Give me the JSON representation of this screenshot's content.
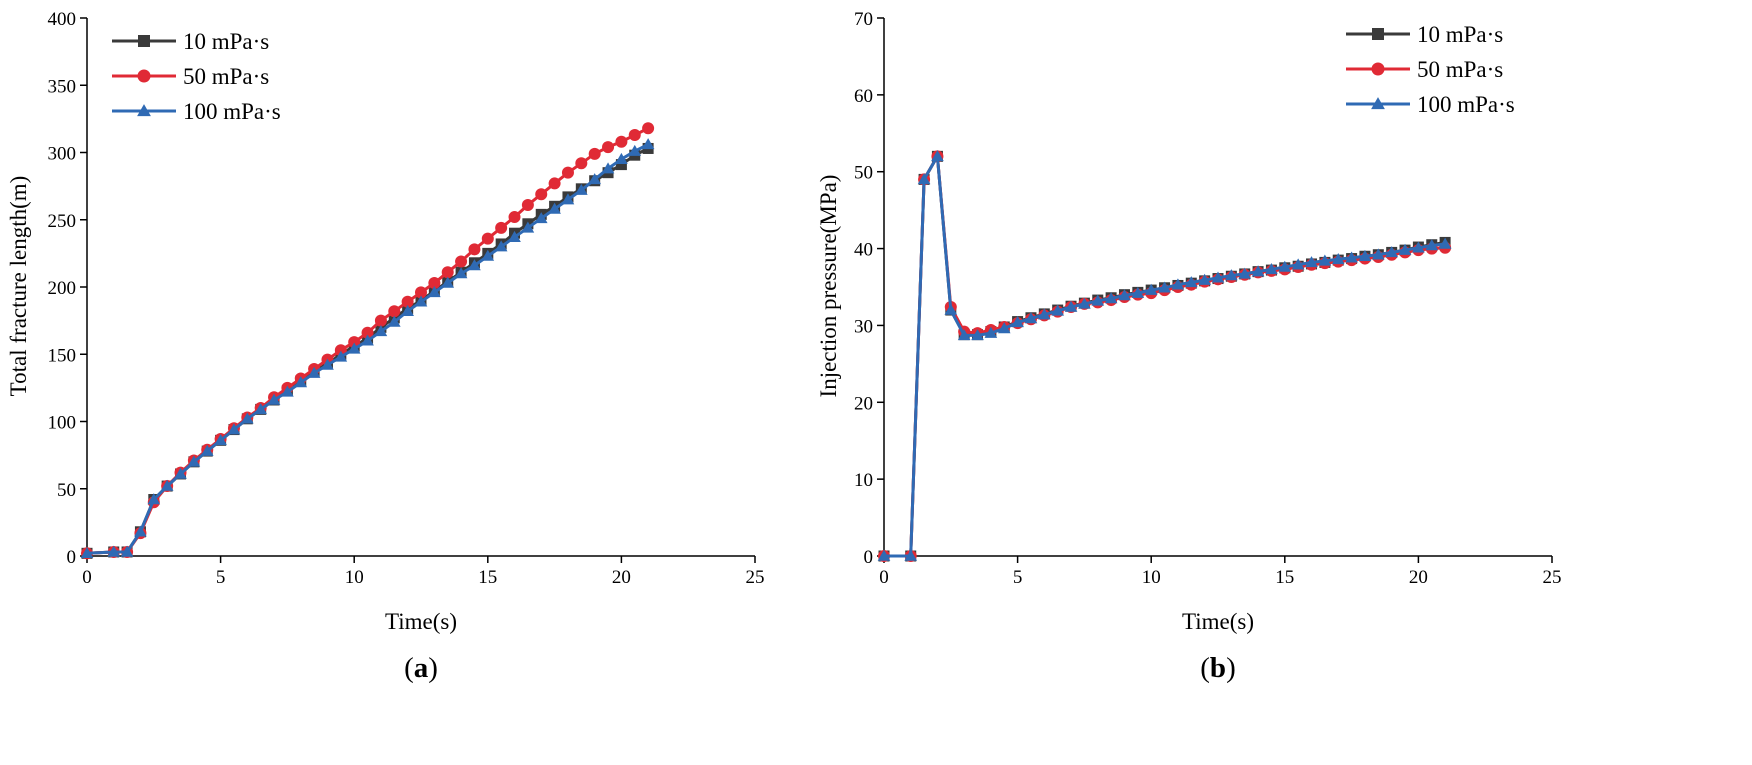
{
  "colors": {
    "s10": "#3a3a3a",
    "s50": "#e02a35",
    "s100": "#2f6ab4"
  },
  "chart_data": [
    {
      "type": "line",
      "panel_label": "(a)",
      "panel_letter": "a",
      "xlabel": "Time(s)",
      "ylabel": "Total fracture length(m)",
      "xlim": [
        0,
        25
      ],
      "ylim": [
        0,
        400
      ],
      "xticks": [
        0,
        5,
        10,
        15,
        20,
        25
      ],
      "yticks": [
        0,
        50,
        100,
        150,
        200,
        250,
        300,
        350,
        400
      ],
      "legend_position": "top-left",
      "series": [
        {
          "name": "10 mPa·s",
          "marker": "square",
          "color_key": "s10",
          "x": [
            0,
            1,
            1.5,
            2,
            2.5,
            3,
            3.5,
            4,
            4.5,
            5,
            5.5,
            6,
            6.5,
            7,
            7.5,
            8,
            8.5,
            9,
            9.5,
            10,
            10.5,
            11,
            11.5,
            12,
            12.5,
            13,
            13.5,
            14,
            14.5,
            15,
            15.5,
            16,
            16.5,
            17,
            17.5,
            18,
            18.5,
            19,
            19.5,
            20,
            20.5,
            21
          ],
          "y": [
            2,
            3,
            3,
            18,
            42,
            52,
            61,
            70,
            78,
            86,
            94,
            102,
            109,
            116,
            123,
            130,
            137,
            143,
            150,
            156,
            162,
            170,
            177,
            184,
            190,
            197,
            204,
            211,
            218,
            225,
            232,
            240,
            247,
            254,
            260,
            267,
            273,
            279,
            285,
            291,
            298,
            303
          ]
        },
        {
          "name": "50 mPa·s",
          "marker": "circle",
          "color_key": "s50",
          "x": [
            0,
            1,
            1.5,
            2,
            2.5,
            3,
            3.5,
            4,
            4.5,
            5,
            5.5,
            6,
            6.5,
            7,
            7.5,
            8,
            8.5,
            9,
            9.5,
            10,
            10.5,
            11,
            11.5,
            12,
            12.5,
            13,
            13.5,
            14,
            14.5,
            15,
            15.5,
            16,
            16.5,
            17,
            17.5,
            18,
            18.5,
            19,
            19.5,
            20,
            20.5,
            21
          ],
          "y": [
            2,
            3,
            3,
            17,
            40,
            52,
            62,
            71,
            79,
            87,
            95,
            103,
            110,
            118,
            125,
            132,
            139,
            146,
            153,
            159,
            166,
            175,
            182,
            189,
            196,
            203,
            211,
            219,
            228,
            236,
            244,
            252,
            261,
            269,
            277,
            285,
            292,
            299,
            304,
            308,
            313,
            318
          ]
        },
        {
          "name": "100 mPa·s",
          "marker": "triangle",
          "color_key": "s100",
          "x": [
            0,
            1,
            1.5,
            2,
            2.5,
            3,
            3.5,
            4,
            4.5,
            5,
            5.5,
            6,
            6.5,
            7,
            7.5,
            8,
            8.5,
            9,
            9.5,
            10,
            10.5,
            11,
            11.5,
            12,
            12.5,
            13,
            13.5,
            14,
            14.5,
            15,
            15.5,
            16,
            16.5,
            17,
            17.5,
            18,
            18.5,
            19,
            19.5,
            20,
            20.5,
            21
          ],
          "y": [
            2,
            3,
            3,
            18,
            42,
            52,
            61,
            70,
            78,
            86,
            94,
            102,
            109,
            116,
            122,
            129,
            136,
            142,
            148,
            154,
            160,
            167,
            174,
            182,
            189,
            196,
            203,
            210,
            216,
            223,
            230,
            237,
            244,
            251,
            258,
            265,
            272,
            280,
            288,
            295,
            301,
            306
          ]
        }
      ]
    },
    {
      "type": "line",
      "panel_label": "(b)",
      "panel_letter": "b",
      "xlabel": "Time(s)",
      "ylabel": "Injection pressure(MPa)",
      "xlim": [
        0,
        25
      ],
      "ylim": [
        0,
        70
      ],
      "xticks": [
        0,
        5,
        10,
        15,
        20,
        25
      ],
      "yticks": [
        0,
        10,
        20,
        30,
        40,
        50,
        60,
        70
      ],
      "legend_position": "top-right",
      "series": [
        {
          "name": "10 mPa·s",
          "marker": "square",
          "color_key": "s10",
          "x": [
            0,
            1,
            1.5,
            2,
            2.5,
            3,
            3.5,
            4,
            4.5,
            5,
            5.5,
            6,
            6.5,
            7,
            7.5,
            8,
            8.5,
            9,
            9.5,
            10,
            10.5,
            11,
            11.5,
            12,
            12.5,
            13,
            13.5,
            14,
            14.5,
            15,
            15.5,
            16,
            16.5,
            17,
            17.5,
            18,
            18.5,
            19,
            19.5,
            20,
            20.5,
            21
          ],
          "y": [
            0,
            0,
            49,
            52,
            32,
            28.8,
            28.8,
            29.2,
            29.8,
            30.5,
            31,
            31.5,
            32,
            32.5,
            32.9,
            33.3,
            33.6,
            34,
            34.3,
            34.6,
            34.9,
            35.2,
            35.5,
            35.8,
            36.1,
            36.4,
            36.7,
            37,
            37.2,
            37.5,
            37.7,
            38,
            38.2,
            38.5,
            38.7,
            39,
            39.2,
            39.5,
            39.8,
            40.2,
            40.5,
            40.8
          ]
        },
        {
          "name": "50 mPa·s",
          "marker": "circle",
          "color_key": "s50",
          "x": [
            0,
            1,
            1.5,
            2,
            2.5,
            3,
            3.5,
            4,
            4.5,
            5,
            5.5,
            6,
            6.5,
            7,
            7.5,
            8,
            8.5,
            9,
            9.5,
            10,
            10.5,
            11,
            11.5,
            12,
            12.5,
            13,
            13.5,
            14,
            14.5,
            15,
            15.5,
            16,
            16.5,
            17,
            17.5,
            18,
            18.5,
            19,
            19.5,
            20,
            20.5,
            21
          ],
          "y": [
            0,
            0,
            49,
            52,
            32.4,
            29.2,
            29,
            29.4,
            29.8,
            30.3,
            30.8,
            31.3,
            31.8,
            32.4,
            32.8,
            33,
            33.3,
            33.7,
            34,
            34.2,
            34.6,
            35,
            35.3,
            35.7,
            36,
            36.3,
            36.6,
            36.9,
            37.1,
            37.3,
            37.6,
            37.9,
            38.1,
            38.3,
            38.5,
            38.7,
            38.9,
            39.2,
            39.5,
            39.8,
            40,
            40.1
          ]
        },
        {
          "name": "100 mPa·s",
          "marker": "triangle",
          "color_key": "s100",
          "x": [
            0,
            1,
            1.5,
            2,
            2.5,
            3,
            3.5,
            4,
            4.5,
            5,
            5.5,
            6,
            6.5,
            7,
            7.5,
            8,
            8.5,
            9,
            9.5,
            10,
            10.5,
            11,
            11.5,
            12,
            12.5,
            13,
            13.5,
            14,
            14.5,
            15,
            15.5,
            16,
            16.5,
            17,
            17.5,
            18,
            18.5,
            19,
            19.5,
            20,
            20.5,
            21
          ],
          "y": [
            0,
            0,
            49,
            52,
            32,
            28.7,
            28.7,
            29,
            29.6,
            30.4,
            30.9,
            31.4,
            31.9,
            32.4,
            32.8,
            33.2,
            33.5,
            33.9,
            34.2,
            34.6,
            34.9,
            35.3,
            35.6,
            35.9,
            36.2,
            36.5,
            36.7,
            37,
            37.3,
            37.6,
            37.9,
            38.2,
            38.4,
            38.6,
            38.8,
            39,
            39.2,
            39.5,
            39.8,
            40.1,
            40.4,
            40.6
          ]
        }
      ]
    }
  ]
}
